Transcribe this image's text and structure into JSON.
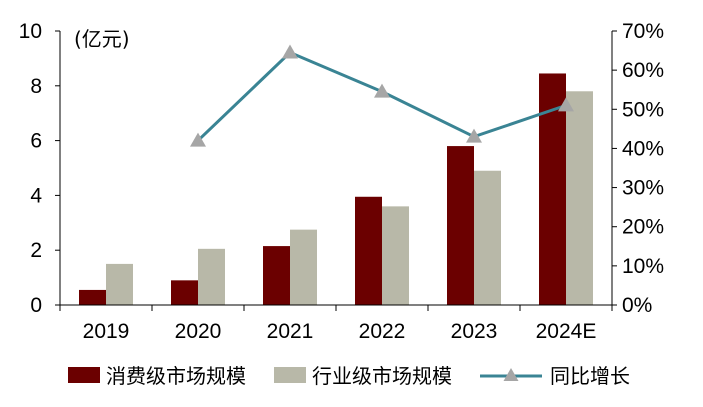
{
  "chart_data": {
    "type": "bar",
    "unit_label": "(亿元)",
    "categories": [
      "2019",
      "2020",
      "2021",
      "2022",
      "2023",
      "2024E"
    ],
    "series": [
      {
        "name": "消费级市场规模",
        "kind": "bar",
        "axis": "left",
        "color": "#6B0000",
        "values": [
          0.55,
          0.9,
          2.15,
          3.95,
          5.8,
          8.45
        ]
      },
      {
        "name": "行业级市场规模",
        "kind": "bar",
        "axis": "left",
        "color": "#B8B8A8",
        "values": [
          1.5,
          2.05,
          2.75,
          3.6,
          4.9,
          7.8
        ]
      },
      {
        "name": "同比增长",
        "kind": "line",
        "axis": "right",
        "color": "#3A8494",
        "marker_color": "#A6A6A6",
        "values": [
          null,
          0.42,
          0.645,
          0.545,
          0.43,
          0.51
        ]
      }
    ],
    "y_left": {
      "min": 0,
      "max": 10,
      "ticks": [
        0,
        2,
        4,
        6,
        8,
        10
      ],
      "tick_labels": [
        "0",
        "2",
        "4",
        "6",
        "8",
        "10"
      ]
    },
    "y_right": {
      "min": 0,
      "max": 0.7,
      "ticks": [
        0,
        0.1,
        0.2,
        0.3,
        0.4,
        0.5,
        0.6,
        0.7
      ],
      "tick_labels": [
        "0%",
        "10%",
        "20%",
        "30%",
        "40%",
        "50%",
        "60%",
        "70%"
      ]
    },
    "title": "",
    "xlabel": "",
    "legend_position": "bottom",
    "grid": false
  }
}
